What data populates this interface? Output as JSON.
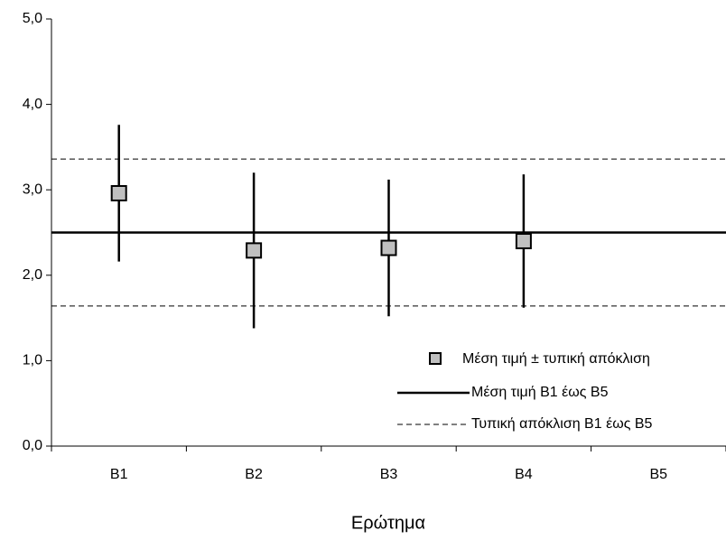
{
  "chart_data": {
    "type": "errorbar",
    "x_label": "Ερώτημα",
    "categories": [
      "Β1",
      "Β2",
      "Β3",
      "Β4",
      "Β5"
    ],
    "series": [
      {
        "name": "Μέση τιμή ± τυπική απόκλιση",
        "color": "#c0c0c0",
        "values": [
          2.96,
          2.29,
          2.32,
          2.4,
          null
        ],
        "errors": [
          0.8,
          0.91,
          0.8,
          0.78,
          null
        ]
      }
    ],
    "reference_lines": [
      {
        "name": "Μέση τιμή Β1 έως Β5",
        "style": "solid",
        "values": [
          2.5
        ]
      },
      {
        "name": "Τυπική απόκλιση Β1 έως Β5",
        "style": "dashed",
        "values": [
          3.36,
          1.64
        ]
      }
    ],
    "ylim": [
      0,
      5
    ],
    "yticks": [
      {
        "value": 0,
        "label": "0,0"
      },
      {
        "value": 1,
        "label": "1,0"
      },
      {
        "value": 2,
        "label": "2,0"
      },
      {
        "value": 3,
        "label": "3,0"
      },
      {
        "value": 4,
        "label": "4,0"
      },
      {
        "value": 5,
        "label": "5,0"
      }
    ],
    "grid": false
  }
}
